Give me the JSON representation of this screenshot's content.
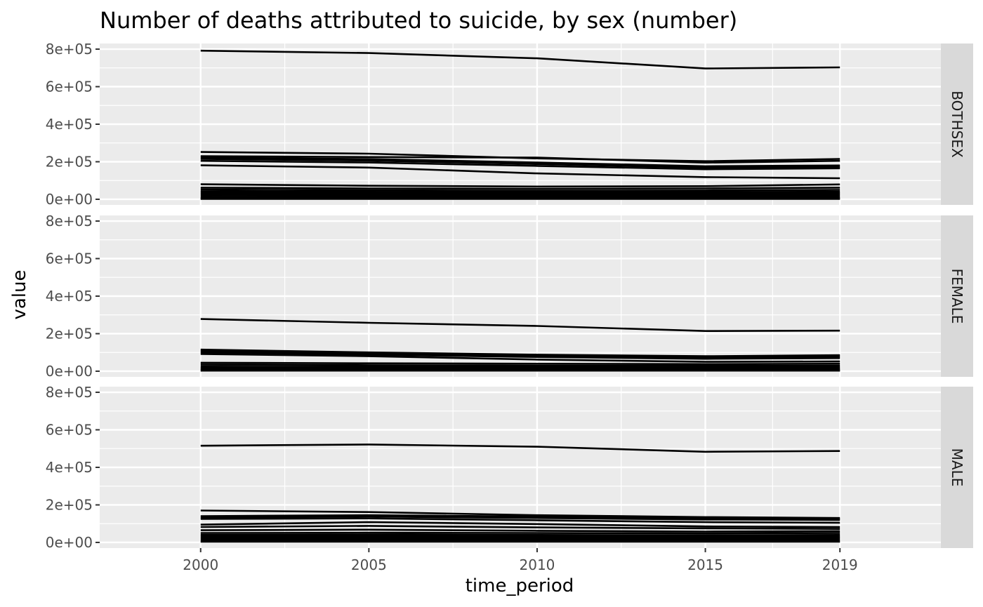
{
  "chart_data": {
    "type": "line",
    "title": "Number of deaths attributed to suicide, by sex (number)",
    "xlabel": "time_period",
    "ylabel": "value",
    "x": [
      2000,
      2005,
      2010,
      2015,
      2019
    ],
    "xlim": [
      1997,
      2022
    ],
    "ylim": [
      -30000,
      830000
    ],
    "y_ticks": [
      0,
      200000,
      400000,
      600000,
      800000
    ],
    "y_tick_labels": [
      "0e+00",
      "2e+05",
      "4e+05",
      "6e+05",
      "8e+05"
    ],
    "facet_labels": [
      "BOTHSEX",
      "FEMALE",
      "MALE"
    ],
    "line_color": "#000000",
    "panel_background": "#ebebeb",
    "strip_background": "#d9d9d9",
    "grid_color": "#ffffff",
    "facets": [
      {
        "label": "BOTHSEX",
        "series": [
          {
            "values": [
              792000,
              779000,
              751000,
              697000,
              703000
            ]
          },
          {
            "values": [
              252000,
              243000,
              218000,
              203000,
              215000
            ]
          },
          {
            "values": [
              230000,
              225000,
              222000,
              195000,
              205000
            ]
          },
          {
            "values": [
              222000,
              214000,
              196000,
              176000,
              180000
            ]
          },
          {
            "values": [
              215000,
              206000,
              188000,
              168000,
              172000
            ]
          },
          {
            "values": [
              205000,
              196000,
              178000,
              160000,
              165000
            ]
          },
          {
            "values": [
              181000,
              169000,
              138000,
              118000,
              112000
            ]
          },
          {
            "values": [
              80000,
              72000,
              68000,
              70000,
              79000
            ]
          },
          {
            "values": [
              62000,
              58000,
              56000,
              58000,
              62000
            ]
          },
          {
            "values": [
              52000,
              48000,
              46000,
              47000,
              50000
            ]
          },
          {
            "values": [
              42000,
              40000,
              38000,
              39000,
              40000
            ]
          },
          {
            "values": [
              35000,
              33000,
              32000,
              32000,
              33000
            ]
          },
          {
            "values": [
              28000,
              26000,
              25000,
              25000,
              26000
            ]
          },
          {
            "values": [
              20000,
              19000,
              18000,
              18000,
              19000
            ]
          },
          {
            "values": [
              12000,
              11000,
              11000,
              11000,
              11000
            ]
          },
          {
            "values": [
              6000,
              6000,
              6000,
              6000,
              6000
            ]
          },
          {
            "values": [
              2000,
              2000,
              2000,
              2000,
              2000
            ]
          }
        ]
      },
      {
        "label": "FEMALE",
        "series": [
          {
            "values": [
              278000,
              258000,
              241000,
              214000,
              216000
            ]
          },
          {
            "values": [
              115000,
              100000,
              88000,
              80000,
              85000
            ]
          },
          {
            "values": [
              108000,
              94000,
              82000,
              74000,
              78000
            ]
          },
          {
            "values": [
              100000,
              88000,
              76000,
              66000,
              70000
            ]
          },
          {
            "values": [
              92000,
              80000,
              62000,
              50000,
              52000
            ]
          },
          {
            "values": [
              45000,
              42000,
              40000,
              38000,
              40000
            ]
          },
          {
            "values": [
              35000,
              32000,
              30000,
              29000,
              30000
            ]
          },
          {
            "values": [
              25000,
              23000,
              22000,
              21000,
              22000
            ]
          },
          {
            "values": [
              18000,
              17000,
              16000,
              15000,
              16000
            ]
          },
          {
            "values": [
              12000,
              11000,
              10000,
              10000,
              10000
            ]
          },
          {
            "values": [
              7000,
              7000,
              6000,
              6000,
              6000
            ]
          },
          {
            "values": [
              3000,
              3000,
              3000,
              3000,
              3000
            ]
          }
        ]
      },
      {
        "label": "MALE",
        "series": [
          {
            "values": [
              515000,
              522000,
              510000,
              483000,
              487000
            ]
          },
          {
            "values": [
              170000,
              162000,
              145000,
              135000,
              130000
            ]
          },
          {
            "values": [
              140000,
              145000,
              138000,
              128000,
              125000
            ]
          },
          {
            "values": [
              132000,
              138000,
              130000,
              122000,
              120000
            ]
          },
          {
            "values": [
              125000,
              128000,
              118000,
              108000,
              105000
            ]
          },
          {
            "values": [
              95000,
              108000,
              98000,
              85000,
              82000
            ]
          },
          {
            "values": [
              82000,
              88000,
              80000,
              75000,
              72000
            ]
          },
          {
            "values": [
              65000,
              68000,
              62000,
              58000,
              60000
            ]
          },
          {
            "values": [
              50000,
              52000,
              50000,
              48000,
              50000
            ]
          },
          {
            "values": [
              40000,
              42000,
              40000,
              38000,
              40000
            ]
          },
          {
            "values": [
              32000,
              33000,
              32000,
              30000,
              31000
            ]
          },
          {
            "values": [
              24000,
              25000,
              24000,
              23000,
              24000
            ]
          },
          {
            "values": [
              16000,
              16000,
              16000,
              15000,
              16000
            ]
          },
          {
            "values": [
              9000,
              9000,
              9000,
              9000,
              9000
            ]
          },
          {
            "values": [
              4000,
              4000,
              4000,
              4000,
              4000
            ]
          }
        ]
      }
    ]
  }
}
